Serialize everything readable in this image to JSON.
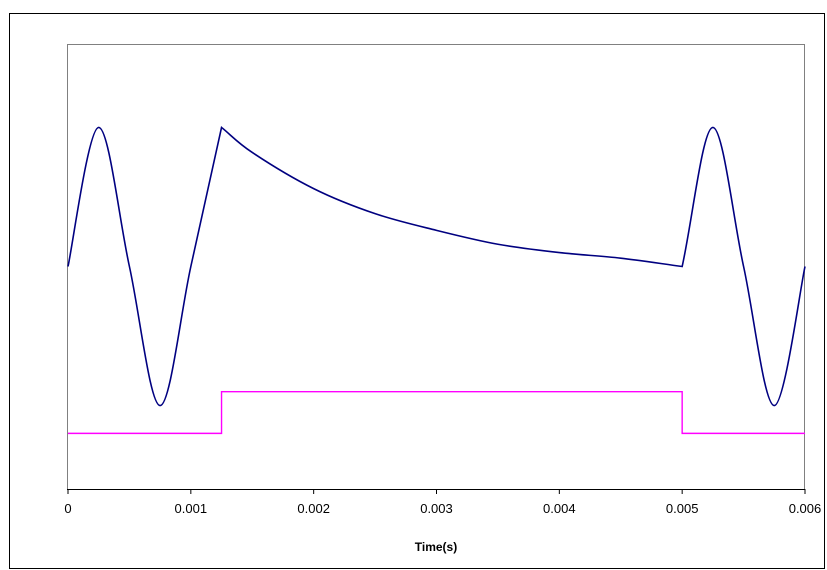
{
  "chart_data": {
    "type": "line",
    "title": "",
    "xlabel": "Time(s)",
    "ylabel": "",
    "xlim": [
      0,
      0.006
    ],
    "x_ticks": [
      0,
      0.001,
      0.002,
      0.003,
      0.004,
      0.005,
      0.006
    ],
    "x_tick_labels": [
      "0",
      "0.001",
      "0.002",
      "0.003",
      "0.004",
      "0.005",
      "0.006"
    ],
    "ylim": [
      -1.6,
      1.6
    ],
    "y_axis_labels_visible": false,
    "grid": false,
    "legend": "none",
    "series": [
      {
        "color": "#000080",
        "x": [
          0,
          0.00025,
          0.0005,
          0.00075,
          0.001,
          0.00125,
          0.0015,
          0.002,
          0.0025,
          0.003,
          0.0035,
          0.004,
          0.0045,
          0.005,
          0.00525,
          0.0055,
          0.00575,
          0.006
        ],
        "y": [
          0,
          1.0,
          0,
          -1.0,
          0,
          1.0,
          0.82,
          0.56,
          0.38,
          0.26,
          0.16,
          0.1,
          0.06,
          0.0,
          1.0,
          0,
          -1.0,
          0
        ]
      },
      {
        "color": "#FF00FF",
        "x": [
          0,
          0.00125,
          0.00125,
          0.005,
          0.005,
          0.006
        ],
        "y": [
          -1.2,
          -1.2,
          -0.9,
          -0.9,
          -1.2,
          -1.2
        ]
      }
    ]
  },
  "colors": {
    "plot_border": "#808080",
    "frame_border": "#000000",
    "axis": "#000000"
  }
}
